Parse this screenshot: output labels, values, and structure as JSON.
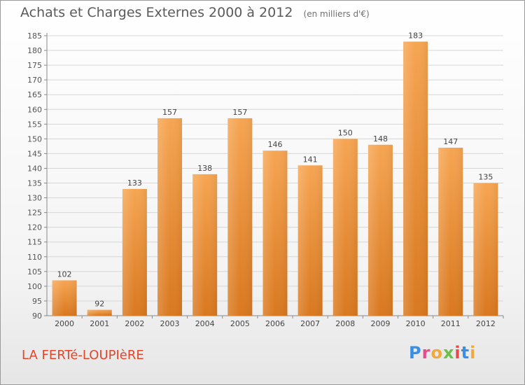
{
  "header": {
    "title": "Achats et Charges Externes 2000 à 2012",
    "subtitle": "(en milliers d'€)"
  },
  "footer": {
    "commune": "LA FERTé-LOUPIèRE",
    "brand": "Proxiti",
    "brand_colors": [
      "#3a8ee6",
      "#e84a8c",
      "#f2a93b",
      "#6cc04a",
      "#e84a4a",
      "#3a8ee6",
      "#f2a93b"
    ]
  },
  "chart_data": {
    "type": "bar",
    "categories": [
      "2000",
      "2001",
      "2002",
      "2003",
      "2004",
      "2005",
      "2006",
      "2007",
      "2008",
      "2009",
      "2010",
      "2011",
      "2012"
    ],
    "values": [
      102,
      92,
      133,
      157,
      138,
      157,
      146,
      141,
      150,
      148,
      183,
      147,
      135
    ],
    "ylim": [
      90,
      185
    ],
    "yticks": [
      90,
      95,
      100,
      105,
      110,
      115,
      120,
      125,
      130,
      135,
      140,
      145,
      150,
      155,
      160,
      165,
      170,
      175,
      180,
      185
    ],
    "grid": true,
    "bar_color_light": "#f6a552",
    "bar_color_dark": "#d9781f"
  }
}
